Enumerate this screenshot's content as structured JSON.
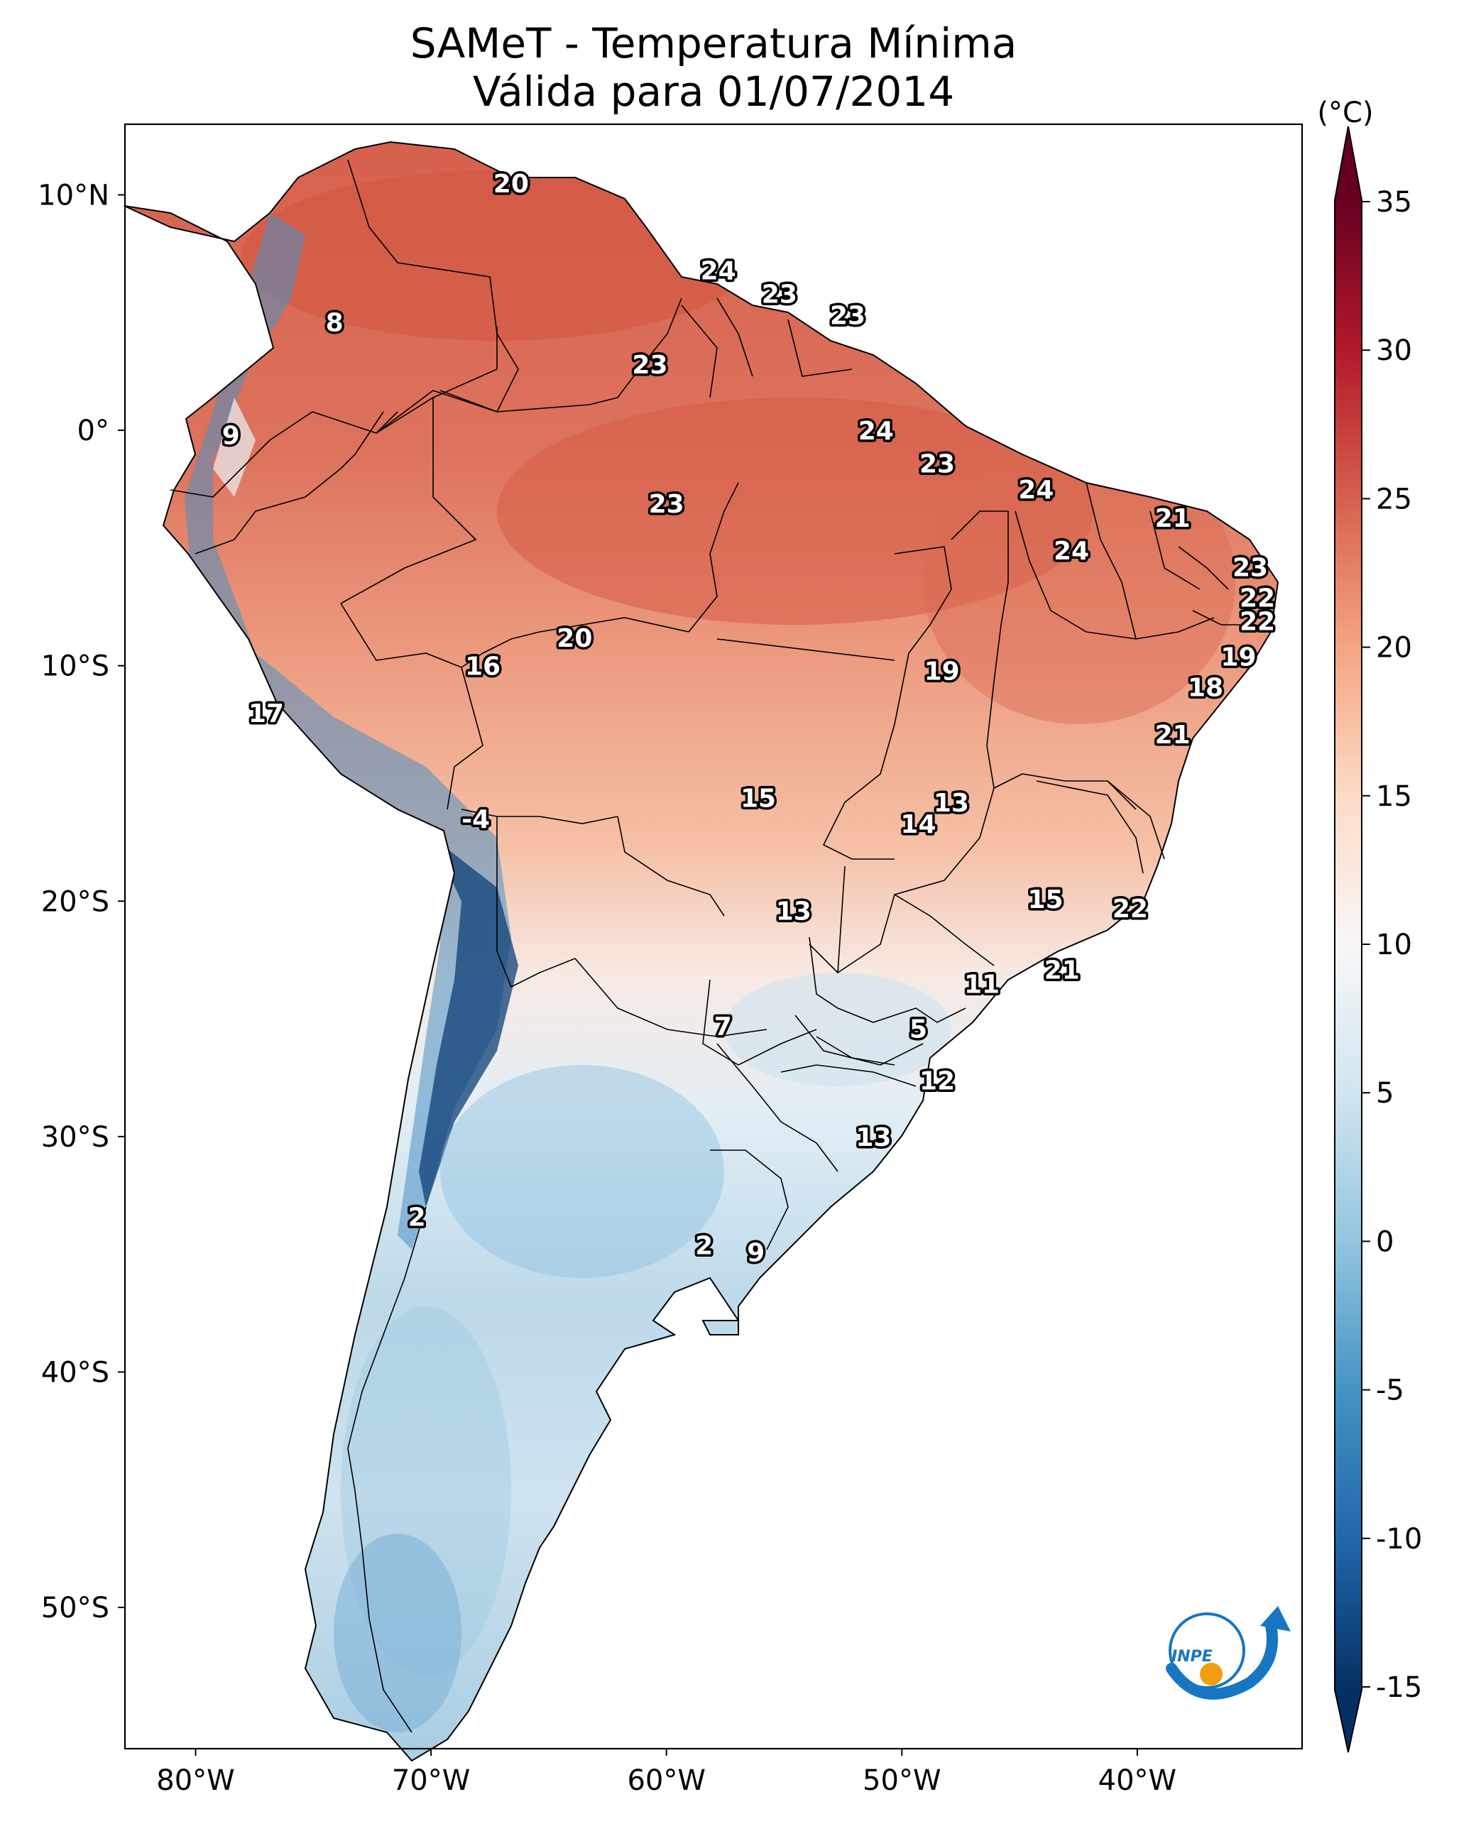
{
  "title": "SAMeT - Temperatura Mínima",
  "subtitle": "Válida para 01/07/2014",
  "colorbar": {
    "unit": "(°C)",
    "ticks": [
      "35",
      "30",
      "25",
      "20",
      "15",
      "10",
      "5",
      "0",
      "-5",
      "-10",
      "-15"
    ],
    "tick_values": [
      35,
      30,
      25,
      20,
      15,
      10,
      5,
      0,
      -5,
      -10,
      -15
    ],
    "range": [
      -17,
      38
    ],
    "colors": [
      "#053061",
      "#2166ac",
      "#4393c3",
      "#92c5de",
      "#d1e5f0",
      "#f7f7f7",
      "#fddbc7",
      "#f4a582",
      "#d6604d",
      "#b2182b",
      "#67001f"
    ]
  },
  "axes": {
    "lon_range": [
      -83,
      -33
    ],
    "lat_range": [
      -56,
      13
    ],
    "x_ticks": [
      {
        "value": -80,
        "label": "80°W"
      },
      {
        "value": -70,
        "label": "70°W"
      },
      {
        "value": -60,
        "label": "60°W"
      },
      {
        "value": -50,
        "label": "50°W"
      },
      {
        "value": -40,
        "label": "40°W"
      }
    ],
    "y_ticks": [
      {
        "value": 10,
        "label": "10°N"
      },
      {
        "value": 0,
        "label": "0°"
      },
      {
        "value": -10,
        "label": "10°S"
      },
      {
        "value": -20,
        "label": "20°S"
      },
      {
        "value": -30,
        "label": "30°S"
      },
      {
        "value": -40,
        "label": "40°S"
      },
      {
        "value": -50,
        "label": "50°S"
      }
    ]
  },
  "city_values": [
    {
      "value": "20",
      "lon": -66.6,
      "lat": 10.5
    },
    {
      "value": "8",
      "lon": -74.1,
      "lat": 4.6
    },
    {
      "value": "9",
      "lon": -78.5,
      "lat": -0.2
    },
    {
      "value": "24",
      "lon": -57.8,
      "lat": 6.8
    },
    {
      "value": "23",
      "lon": -55.2,
      "lat": 5.8
    },
    {
      "value": "23",
      "lon": -52.3,
      "lat": 4.9
    },
    {
      "value": "23",
      "lon": -60.7,
      "lat": 2.8
    },
    {
      "value": "24",
      "lon": -51.1,
      "lat": 0.0
    },
    {
      "value": "23",
      "lon": -48.5,
      "lat": -1.4
    },
    {
      "value": "24",
      "lon": -44.3,
      "lat": -2.5
    },
    {
      "value": "21",
      "lon": -38.5,
      "lat": -3.7
    },
    {
      "value": "24",
      "lon": -42.8,
      "lat": -5.1
    },
    {
      "value": "23",
      "lon": -35.2,
      "lat": -5.8
    },
    {
      "value": "22",
      "lon": -34.9,
      "lat": -7.1
    },
    {
      "value": "22",
      "lon": -34.9,
      "lat": -8.1
    },
    {
      "value": "23",
      "lon": -60.0,
      "lat": -3.1
    },
    {
      "value": "20",
      "lon": -63.9,
      "lat": -8.8
    },
    {
      "value": "16",
      "lon": -67.8,
      "lat": -10.0
    },
    {
      "value": "19",
      "lon": -48.3,
      "lat": -10.2
    },
    {
      "value": "19",
      "lon": -35.7,
      "lat": -9.6
    },
    {
      "value": "18",
      "lon": -37.1,
      "lat": -10.9
    },
    {
      "value": "21",
      "lon": -38.5,
      "lat": -12.9
    },
    {
      "value": "17",
      "lon": -77.0,
      "lat": -12.0
    },
    {
      "value": "-4",
      "lon": -68.1,
      "lat": -16.5
    },
    {
      "value": "15",
      "lon": -56.1,
      "lat": -15.6
    },
    {
      "value": "13",
      "lon": -47.9,
      "lat": -15.8
    },
    {
      "value": "14",
      "lon": -49.3,
      "lat": -16.7
    },
    {
      "value": "15",
      "lon": -43.9,
      "lat": -19.9
    },
    {
      "value": "22",
      "lon": -40.3,
      "lat": -20.3
    },
    {
      "value": "13",
      "lon": -54.6,
      "lat": -20.4
    },
    {
      "value": "21",
      "lon": -43.2,
      "lat": -22.9
    },
    {
      "value": "11",
      "lon": -46.6,
      "lat": -23.5
    },
    {
      "value": "7",
      "lon": -57.6,
      "lat": -25.3
    },
    {
      "value": "5",
      "lon": -49.3,
      "lat": -25.4
    },
    {
      "value": "12",
      "lon": -48.5,
      "lat": -27.6
    },
    {
      "value": "13",
      "lon": -51.2,
      "lat": -30.0
    },
    {
      "value": "2",
      "lon": -70.6,
      "lat": -33.4
    },
    {
      "value": "2",
      "lon": -58.4,
      "lat": -34.6
    },
    {
      "value": "9",
      "lon": -56.2,
      "lat": -34.9
    }
  ]
}
